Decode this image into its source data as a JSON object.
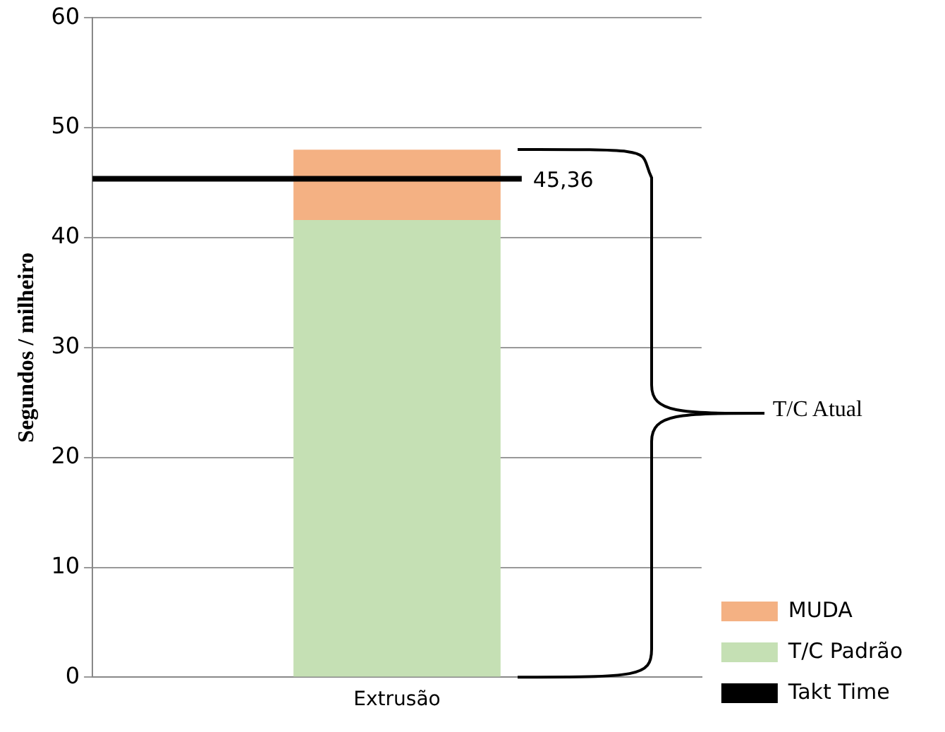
{
  "chart_data": {
    "type": "bar",
    "stacked": true,
    "ylabel": "Segundos / milheiro",
    "categories": [
      "Extrusão"
    ],
    "series": [
      {
        "name": "T/C Padrão",
        "color": "#c5e0b4",
        "values": [
          41.6
        ]
      },
      {
        "name": "MUDA",
        "color": "#f4b183",
        "values": [
          6.4
        ]
      }
    ],
    "ylim": [
      0,
      60
    ],
    "yticks": [
      0,
      10,
      20,
      30,
      40,
      50,
      60
    ],
    "grid": "y",
    "legend": "bottom right",
    "ref_lines": [
      {
        "axis": "y",
        "value": 45.36,
        "label": "Takt Time",
        "color": "#000000"
      }
    ],
    "annotations": [
      "45,36",
      "T/C Atual"
    ]
  }
}
